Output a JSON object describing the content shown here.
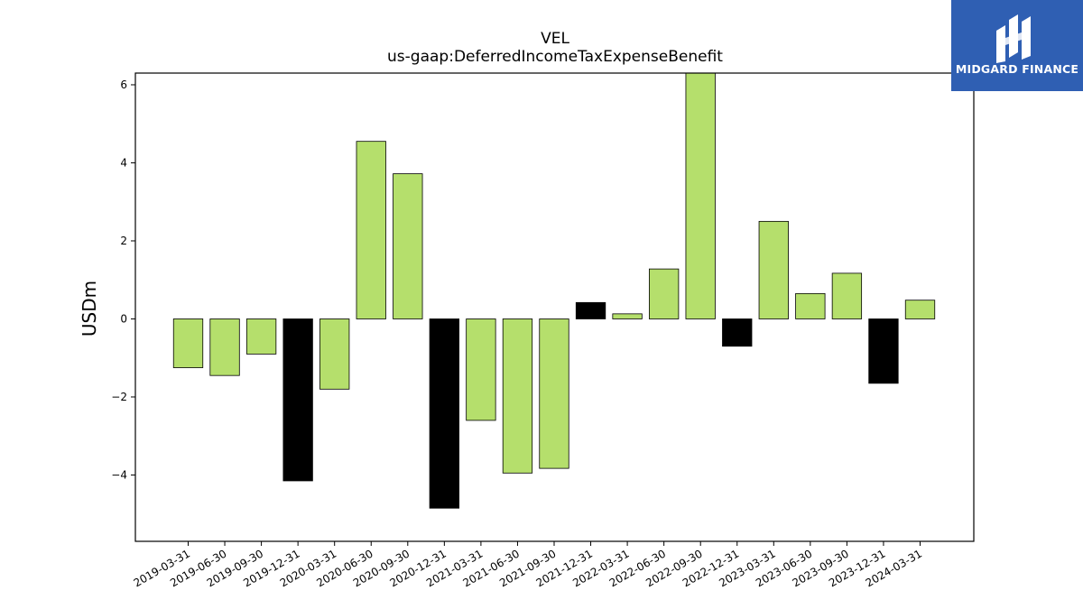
{
  "logo": {
    "text": "MIDGARD FINANCE",
    "icon": "midgard-logo-icon",
    "background": "#2f5fb3"
  },
  "chart_data": {
    "type": "bar",
    "title": "VEL",
    "subtitle": "us-gaap:DeferredIncomeTaxExpenseBenefit",
    "xlabel": "",
    "ylabel": "USDm",
    "ylim": [
      -5.7,
      6.3
    ],
    "yticks": [
      -4,
      -2,
      0,
      2,
      4,
      6
    ],
    "grid": false,
    "categories": [
      "2019-03-31",
      "2019-06-30",
      "2019-09-30",
      "2019-12-31",
      "2020-03-31",
      "2020-06-30",
      "2020-09-30",
      "2020-12-31",
      "2021-03-31",
      "2021-06-30",
      "2021-09-30",
      "2021-12-31",
      "2022-03-31",
      "2022-06-30",
      "2022-09-30",
      "2022-12-31",
      "2023-03-31",
      "2023-06-30",
      "2023-09-30",
      "2023-12-31",
      "2024-03-31"
    ],
    "values": [
      -1.25,
      -1.45,
      -0.9,
      -4.15,
      -1.8,
      4.55,
      3.72,
      -4.85,
      -2.6,
      -3.95,
      -3.83,
      0.42,
      0.13,
      1.28,
      6.4,
      -0.7,
      2.5,
      0.65,
      1.17,
      -1.65,
      0.48
    ],
    "fiscal_year_end": [
      false,
      false,
      false,
      true,
      false,
      false,
      false,
      true,
      false,
      false,
      false,
      true,
      false,
      false,
      false,
      true,
      false,
      false,
      false,
      true,
      false
    ],
    "colors": {
      "quarter": "#b5df6c",
      "year_end": "#000000",
      "edge": "#000000"
    }
  }
}
